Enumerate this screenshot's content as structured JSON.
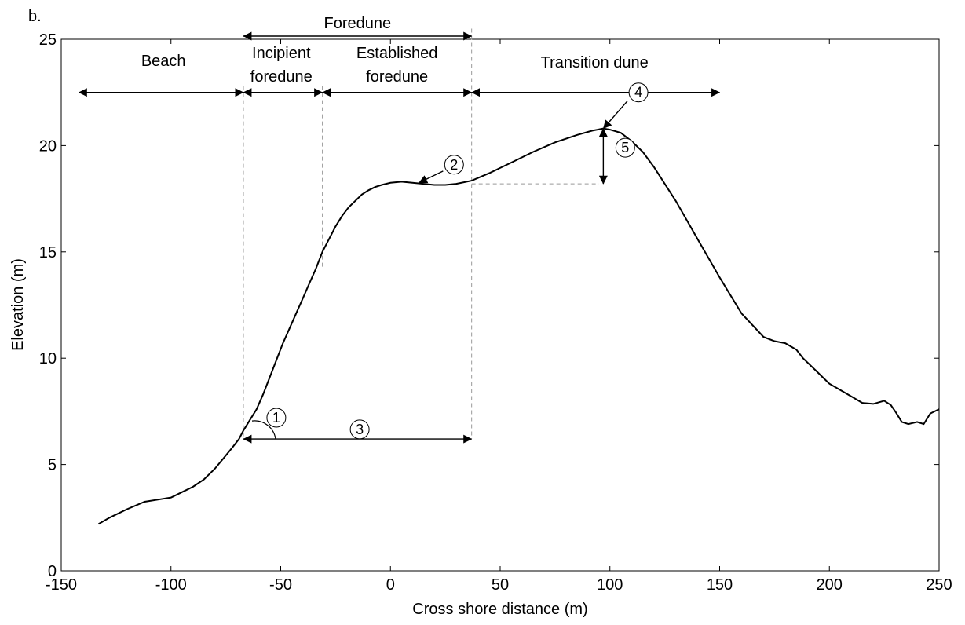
{
  "panel_label": "b.",
  "chart_data": {
    "type": "line",
    "xlabel": "Cross shore distance (m)",
    "ylabel": "Elevation (m)",
    "xlim": [
      -150,
      250
    ],
    "ylim": [
      0,
      25
    ],
    "xticks": [
      -150,
      -100,
      -50,
      0,
      50,
      100,
      150,
      200,
      250
    ],
    "yticks": [
      0,
      5,
      10,
      15,
      20,
      25
    ],
    "grid": false,
    "series": [
      {
        "color": "#000000",
        "x": [
          -133,
          -128,
          -120,
          -112,
          -106,
          -100,
          -95,
          -90,
          -85,
          -80,
          -76,
          -72,
          -69,
          -67,
          -64,
          -61,
          -58,
          -55,
          -52,
          -49,
          -46,
          -43,
          -40,
          -37,
          -34,
          -31,
          -28,
          -25,
          -22,
          -19,
          -16,
          -13,
          -10,
          -7,
          -4,
          0,
          5,
          10,
          15,
          20,
          25,
          30,
          37,
          45,
          55,
          65,
          75,
          85,
          92,
          97,
          100,
          105,
          110,
          115,
          120,
          130,
          140,
          150,
          160,
          170,
          175,
          180,
          185,
          188,
          191,
          194,
          197,
          200,
          205,
          210,
          215,
          220,
          225,
          228,
          230,
          233,
          236,
          240,
          243,
          246,
          248,
          250
        ],
        "y": [
          2.2,
          2.5,
          2.9,
          3.25,
          3.35,
          3.45,
          3.7,
          3.95,
          4.3,
          4.8,
          5.3,
          5.8,
          6.2,
          6.6,
          7.1,
          7.6,
          8.3,
          9.1,
          9.9,
          10.7,
          11.4,
          12.1,
          12.8,
          13.5,
          14.2,
          15.0,
          15.6,
          16.2,
          16.7,
          17.1,
          17.4,
          17.7,
          17.9,
          18.05,
          18.15,
          18.25,
          18.3,
          18.25,
          18.2,
          18.15,
          18.15,
          18.2,
          18.35,
          18.7,
          19.2,
          19.7,
          20.15,
          20.5,
          20.7,
          20.8,
          20.75,
          20.6,
          20.2,
          19.7,
          19.0,
          17.4,
          15.6,
          13.8,
          12.1,
          11.0,
          10.8,
          10.7,
          10.4,
          10.0,
          9.7,
          9.4,
          9.1,
          8.8,
          8.5,
          8.2,
          7.9,
          7.85,
          8.0,
          7.8,
          7.5,
          7.0,
          6.9,
          7.0,
          6.9,
          7.4,
          7.5,
          7.6
        ]
      }
    ],
    "zone_labels": {
      "foredune": "Foredune",
      "beach": "Beach",
      "incipient_line1": "Incipient",
      "incipient_line2": "foredune",
      "established_line1": "Established",
      "established_line2": "foredune",
      "transition": "Transition dune"
    },
    "zone_bounds": {
      "foredune": [
        -67,
        37
      ],
      "beach": [
        -142,
        -67
      ],
      "incipient": [
        -67,
        -31
      ],
      "established": [
        -31,
        37
      ],
      "transition": [
        37,
        150
      ]
    },
    "markers": [
      "1",
      "2",
      "3",
      "4",
      "5"
    ]
  }
}
